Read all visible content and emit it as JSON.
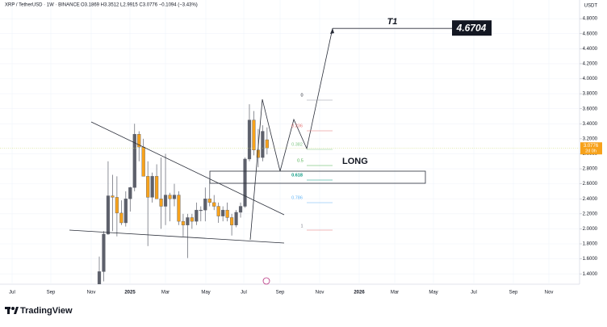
{
  "chart_data": {
    "type": "candlestick",
    "header": "XRP / TetherUSD · 1W · BINANCE",
    "ohlc_text": "O3.1869  H3.3512  L2.9915  C3.0776  −0.1094 (−3.43%)",
    "currency": "USDT",
    "countdown": "2d 0h",
    "open": [
      1.1,
      1.43,
      1.93,
      2.44,
      2.42,
      2.21,
      2.08,
      2.4,
      2.55,
      3.26,
      3.09,
      2.7,
      2.42,
      2.7,
      2.4,
      2.3,
      2.45,
      2.4,
      2.45,
      2.1,
      2.05,
      2.15,
      2.1,
      2.25,
      2.25,
      2.4,
      2.35,
      2.3,
      2.17,
      2.25,
      2.15,
      2.05,
      2.22,
      2.3,
      2.93,
      3.45,
      3.05,
      2.95,
      3.1869
    ],
    "high": [
      1.63,
      1.97,
      2.9,
      2.72,
      2.7,
      2.38,
      2.5,
      2.56,
      3.4,
      3.3,
      3.2,
      2.9,
      2.75,
      2.86,
      2.95,
      3.0,
      2.48,
      2.6,
      2.5,
      2.2,
      2.2,
      2.2,
      2.35,
      2.3,
      2.55,
      2.65,
      2.45,
      2.35,
      2.3,
      2.35,
      2.2,
      2.25,
      2.35,
      2.95,
      3.66,
      3.57,
      3.33,
      3.38,
      3.3512
    ],
    "low": [
      1.08,
      1.3,
      1.92,
      1.97,
      1.9,
      2.05,
      2.03,
      2.23,
      2.5,
      2.9,
      2.7,
      1.77,
      2.35,
      2.4,
      2.0,
      2.05,
      2.1,
      2.3,
      2.05,
      1.9,
      1.61,
      2.0,
      2.05,
      2.1,
      2.1,
      2.3,
      2.25,
      2.08,
      2.1,
      2.1,
      1.91,
      2.02,
      2.15,
      2.28,
      2.9,
      2.98,
      2.82,
      2.9,
      2.9915
    ],
    "close": [
      1.43,
      1.93,
      2.44,
      2.42,
      2.21,
      2.08,
      2.4,
      2.55,
      3.26,
      3.09,
      2.7,
      2.42,
      2.7,
      2.4,
      2.3,
      2.45,
      2.4,
      2.45,
      2.1,
      2.05,
      2.15,
      2.1,
      2.25,
      2.25,
      2.4,
      2.35,
      2.3,
      2.17,
      2.25,
      2.15,
      2.05,
      2.22,
      2.3,
      2.93,
      3.45,
      3.05,
      2.95,
      3.3,
      3.0776
    ],
    "up_color": "#5d606b",
    "down_color": "#f7a21b",
    "ylim": [
      1.262,
      5.049
    ],
    "yticks": [
      {
        "value": 1.4,
        "label": "1.4000"
      },
      {
        "value": 1.6,
        "label": "1.6000"
      },
      {
        "value": 1.8,
        "label": "1.8000"
      },
      {
        "value": 2.0,
        "label": "2.0000"
      },
      {
        "value": 2.2,
        "label": "2.2000"
      },
      {
        "value": 2.4,
        "label": "2.4000"
      },
      {
        "value": 2.6,
        "label": "2.6000"
      },
      {
        "value": 2.8,
        "label": "2.8000"
      },
      {
        "value": 3.0,
        "label": "3.0000"
      },
      {
        "value": 3.2,
        "label": "3.2000"
      },
      {
        "value": 3.4,
        "label": "3.4000"
      },
      {
        "value": 3.6,
        "label": "3.6000"
      },
      {
        "value": 3.8,
        "label": "3.8000"
      },
      {
        "value": 4.0,
        "label": "4.0000"
      },
      {
        "value": 4.2,
        "label": "4.2000"
      },
      {
        "value": 4.4,
        "label": "4.4000"
      },
      {
        "value": 4.6,
        "label": "4.6000"
      },
      {
        "value": 4.8,
        "label": "4.8000"
      }
    ],
    "xtick_labels": [
      "Jul",
      "Sep",
      "Nov",
      "2025",
      "Mar",
      "May",
      "Jul",
      "Sep",
      "Nov",
      "2026",
      "Mar",
      "May",
      "Jul",
      "Sep",
      "Nov"
    ],
    "target_name": "T1",
    "target": 4.6704,
    "entry_label": "LONG",
    "fib_labels": [
      "0",
      "0.236",
      "0.382",
      "0.5",
      "0.618",
      "0.786",
      "1"
    ],
    "brand": "TradingView"
  }
}
